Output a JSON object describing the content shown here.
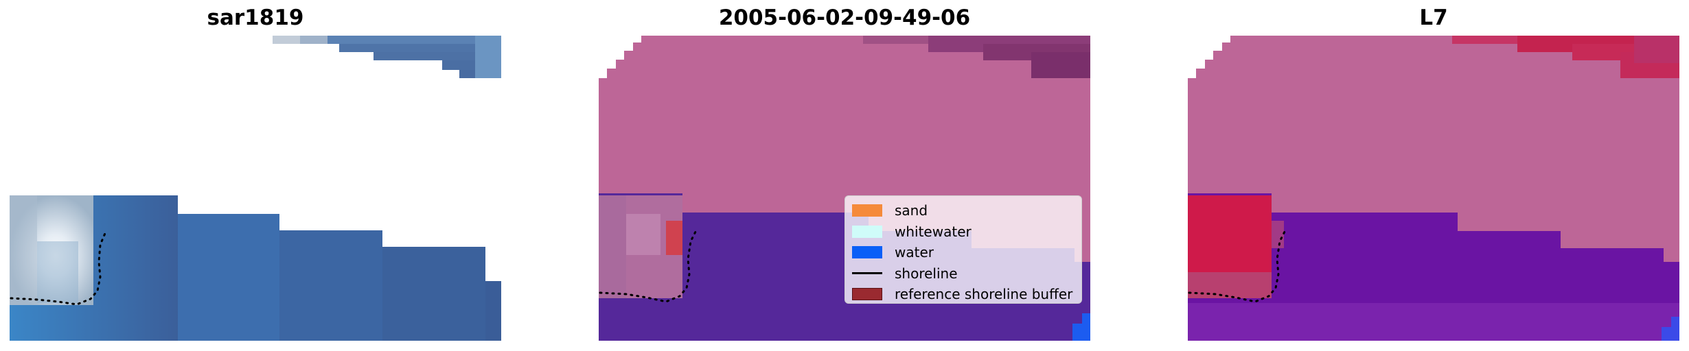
{
  "panels": [
    {
      "title": "sar1819"
    },
    {
      "title": "2005-06-02-09-49-06"
    },
    {
      "title": "L7"
    }
  ],
  "legend": {
    "items": [
      {
        "label": "sand",
        "color": "#f58a3a",
        "type": "patch"
      },
      {
        "label": "whitewater",
        "color": "#cffcf9",
        "type": "patch"
      },
      {
        "label": "water",
        "color": "#0a5ff7",
        "type": "patch"
      },
      {
        "label": "shoreline",
        "color": "#000000",
        "type": "line"
      },
      {
        "label": "reference shoreline buffer",
        "color": "#9a2a30",
        "type": "patch"
      }
    ]
  },
  "colors": {
    "rgb_water": "#3f6fa8",
    "classified_sand_overlay": "#bd6697",
    "classified_water_overlay": "#55289a",
    "index_sand_overlay": "#bd6697",
    "index_water_overlay": "#6a14a3",
    "index_wave_crest": "#cf1a4a"
  }
}
